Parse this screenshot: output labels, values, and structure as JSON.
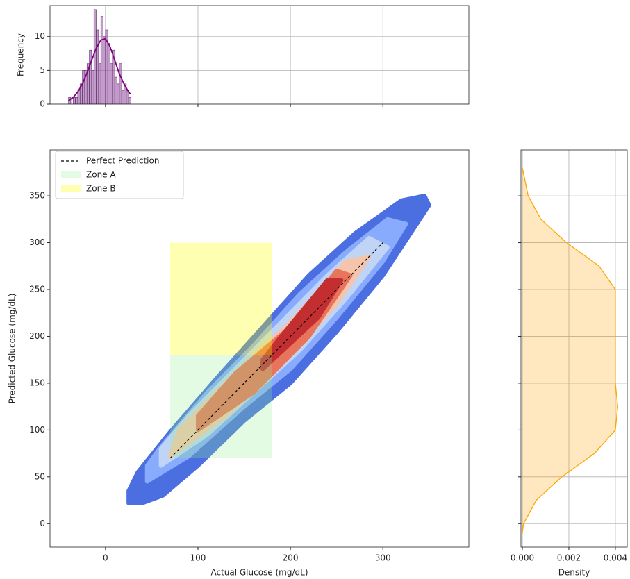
{
  "chart_data": [
    {
      "type": "histogram",
      "ylabel": "Frequency",
      "bins": [
        -40,
        -37.5,
        -35,
        -32.5,
        -30,
        -27.5,
        -25,
        -22.5,
        -20,
        -17.5,
        -15,
        -12.5,
        -10,
        -7.5,
        -5,
        -2.5,
        0,
        2.5,
        5,
        7.5,
        10,
        12.5,
        15,
        17.5,
        20,
        22.5,
        25,
        27.5
      ],
      "counts": [
        1,
        0,
        1,
        1,
        2,
        3,
        5,
        5,
        6,
        8,
        5,
        14,
        11,
        6,
        13,
        10,
        11,
        9,
        6,
        8,
        4,
        3,
        6,
        2,
        3,
        2,
        1
      ],
      "color": "#9b59a8",
      "kde": {
        "x": [
          -40,
          -35,
          -30,
          -25,
          -20,
          -15,
          -10,
          -5,
          0,
          5,
          10,
          15,
          20,
          25,
          27
        ],
        "values": [
          0.5,
          1,
          1.8,
          3,
          4.6,
          6.5,
          8.3,
          9.5,
          9.7,
          8.5,
          6.5,
          4.5,
          3,
          1.8,
          1.5
        ],
        "color": "purple"
      },
      "xlim": [
        -60,
        393
      ],
      "xticks": [
        0,
        100,
        200,
        300
      ],
      "xtick_labels": false,
      "ylim": [
        0,
        14.6
      ],
      "yticks": [
        0,
        5,
        10
      ],
      "grid": true
    },
    {
      "type": "kde",
      "xlabel": "Actual Glucose (mg/dL)",
      "ylabel": "Predicted Glucose (mg/dL)",
      "contours": [
        {
          "color": "#4b6fe0",
          "x": [
            25,
            40,
            62,
            100,
            150,
            200,
            250,
            300,
            350,
            345,
            320,
            270,
            220,
            170,
            120,
            70,
            35,
            25
          ],
          "y": [
            22,
            22,
            30,
            62,
            110,
            150,
            205,
            265,
            340,
            350,
            345,
            310,
            265,
            210,
            155,
            98,
            55,
            35
          ]
        },
        {
          "color": "#89abfd",
          "x": [
            45,
            90,
            150,
            200,
            250,
            300,
            325,
            305,
            260,
            210,
            160,
            110,
            60,
            45
          ],
          "y": [
            45,
            72,
            125,
            165,
            220,
            280,
            320,
            325,
            290,
            245,
            190,
            140,
            82,
            62
          ]
        },
        {
          "color": "#c0d4f5",
          "x": [
            60,
            110,
            160,
            210,
            260,
            305,
            285,
            240,
            190,
            140,
            90,
            60
          ],
          "y": [
            62,
            95,
            140,
            185,
            240,
            295,
            305,
            265,
            215,
            165,
            115,
            80
          ]
        },
        {
          "color": "#f5c4ac",
          "x": [
            70,
            130,
            190,
            250,
            285,
            260,
            200,
            140,
            80
          ],
          "y": [
            72,
            115,
            170,
            235,
            285,
            280,
            215,
            160,
            100
          ]
        },
        {
          "color": "#e7745b",
          "x": [
            100,
            160,
            220,
            265,
            250,
            200,
            140,
            100
          ],
          "y": [
            100,
            140,
            200,
            265,
            270,
            210,
            160,
            115
          ]
        },
        {
          "color": "#c32e31",
          "x": [
            170,
            230,
            255,
            240,
            190,
            170
          ],
          "y": [
            165,
            220,
            260,
            260,
            200,
            175
          ]
        }
      ],
      "zones": [
        {
          "name": "Zone A",
          "color": "lightgreen",
          "alpha": 0.25,
          "x": [
            70,
            180
          ],
          "y": [
            70,
            180
          ]
        },
        {
          "name": "Zone B",
          "color": "yellow",
          "alpha": 0.3,
          "x": [
            70,
            180
          ],
          "y": [
            180,
            300
          ]
        }
      ],
      "series": [
        {
          "name": "Perfect Prediction",
          "color": "black",
          "dash": true,
          "x": [
            70,
            300
          ],
          "values": [
            70,
            300
          ]
        }
      ],
      "legend": "upper left",
      "xlim": [
        -60,
        393
      ],
      "xticks": [
        0,
        100,
        200,
        300
      ],
      "ylim": [
        -25,
        399
      ],
      "yticks": [
        0,
        50,
        100,
        150,
        200,
        250,
        300,
        350
      ],
      "grid": false
    },
    {
      "type": "density",
      "xlabel": "Density",
      "orientation": "horizontal",
      "y": [
        -10,
        0,
        25,
        50,
        75,
        100,
        125,
        150,
        175,
        200,
        225,
        250,
        275,
        300,
        325,
        350,
        380
      ],
      "values": [
        0,
        5e-05,
        0.0006,
        0.0017,
        0.0031,
        0.004,
        0.0041,
        0.004,
        0.004,
        0.004,
        0.004,
        0.004,
        0.0033,
        0.0019,
        0.0008,
        0.00025,
        0
      ],
      "color": "orange",
      "alpha": 0.25,
      "xlim": [
        -6e-05,
        0.00451
      ],
      "xticks": [
        {
          "value": 0,
          "label": "0.000"
        },
        {
          "value": 0.002,
          "label": "0.002"
        },
        {
          "value": 0.004,
          "label": "0.004"
        }
      ],
      "ylim": [
        -25,
        399
      ],
      "yticks": [
        0,
        50,
        100,
        150,
        200,
        250,
        300,
        350
      ],
      "ytick_labels": false,
      "grid": true
    }
  ]
}
